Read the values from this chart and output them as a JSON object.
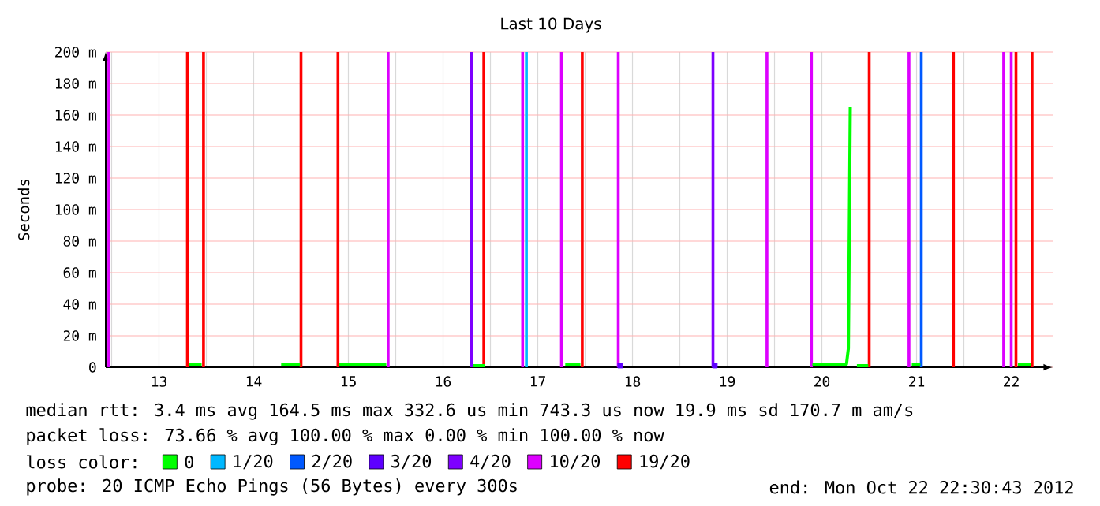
{
  "chart_data": {
    "type": "line",
    "title": "Last 10 Days",
    "ylabel": "Seconds",
    "xlim": [
      12.9375,
      22.9375
    ],
    "xticks": [
      {
        "value": 13,
        "label": null
      },
      {
        "value": 13.5,
        "label": "13"
      },
      {
        "value": 14,
        "label": null
      },
      {
        "value": 14.5,
        "label": "14"
      },
      {
        "value": 15,
        "label": null
      },
      {
        "value": 15.5,
        "label": "15"
      },
      {
        "value": 16,
        "label": null
      },
      {
        "value": 16.5,
        "label": "16"
      },
      {
        "value": 17,
        "label": null
      },
      {
        "value": 17.5,
        "label": "17"
      },
      {
        "value": 18,
        "label": null
      },
      {
        "value": 18.5,
        "label": "18"
      },
      {
        "value": 19,
        "label": null
      },
      {
        "value": 19.5,
        "label": "19"
      },
      {
        "value": 20,
        "label": null
      },
      {
        "value": 20.5,
        "label": "20"
      },
      {
        "value": 21,
        "label": null
      },
      {
        "value": 21.5,
        "label": "21"
      },
      {
        "value": 22,
        "label": null
      },
      {
        "value": 22.5,
        "label": "22"
      }
    ],
    "ylim": [
      0,
      200
    ],
    "yticks": [
      0,
      {
        "value": 20,
        "label": "20 m"
      },
      {
        "value": 40,
        "label": "40 m"
      },
      {
        "value": 60,
        "label": "60 m"
      },
      {
        "value": 80,
        "label": "80 m"
      },
      {
        "value": 100,
        "label": "100 m"
      },
      {
        "value": 120,
        "label": "120 m"
      },
      {
        "value": 140,
        "label": "140 m"
      },
      {
        "value": 160,
        "label": "160 m"
      },
      {
        "value": 180,
        "label": "180 m"
      },
      {
        "value": 200,
        "label": "200 m"
      }
    ],
    "grid": true,
    "legend": "bottom",
    "legend_title": "loss color:",
    "series": [
      {
        "name": "0",
        "color": "#00ff00",
        "x": [
          13.82,
          13.95,
          13.96,
          14.79,
          14.99,
          15.0,
          15.4,
          15.65,
          15.9,
          15.91,
          16.82,
          16.94,
          16.95,
          17.79,
          17.95,
          17.96,
          20.4,
          20.6,
          20.76,
          20.78,
          20.8,
          20.82,
          20.87,
          20.99,
          21.0,
          21.45,
          21.54,
          21.55,
          22.57,
          22.71
        ],
        "values": [
          2,
          2,
          null,
          2,
          2,
          null,
          2,
          2,
          2,
          null,
          1,
          1,
          null,
          2,
          2,
          null,
          2,
          2,
          2,
          12,
          165,
          null,
          1,
          1,
          null,
          2,
          2,
          null,
          2,
          2
        ]
      },
      {
        "name": "1/20",
        "color": "#00b8ff",
        "type": "bar",
        "x": [
          17.38
        ],
        "values": [
          200
        ]
      },
      {
        "name": "2/20",
        "color": "#0059ff",
        "type": "bar",
        "x": [
          21.55
        ],
        "values": [
          200
        ]
      },
      {
        "name": "3/20",
        "color": "#5e00ff",
        "type": "scatter",
        "x": [
          18.37,
          19.37
        ],
        "values": [
          1,
          1
        ]
      },
      {
        "name": "4/20",
        "color": "#7e00ff",
        "type": "bar",
        "x": [
          16.8,
          19.35
        ],
        "values": [
          200,
          200
        ]
      },
      {
        "name": "10/20",
        "color": "#dd00ff",
        "type": "bar",
        "x": [
          12.97,
          15.92,
          17.34,
          17.75,
          18.35,
          19.92,
          20.39,
          21.42,
          22.42,
          22.5
        ],
        "values": [
          200,
          200,
          200,
          200,
          200,
          200,
          200,
          200,
          200,
          200
        ]
      },
      {
        "name": "19/20",
        "color": "#ff0000",
        "type": "bar",
        "x": [
          13.8,
          13.97,
          15.0,
          15.39,
          16.93,
          17.97,
          21.0,
          21.89,
          22.55,
          22.72
        ],
        "values": [
          200,
          200,
          200,
          200,
          200,
          200,
          200,
          200,
          200,
          200
        ]
      }
    ],
    "annotations": [
      "median rtt: 3.4 ms avg 164.5 ms max 332.6 us min 743.3 us now 19.9 ms sd 170.7 m am/s",
      "packet loss: 73.66 % avg 100.00 % max 0.00 % min 100.00 % now",
      "probe: 20 ICMP Echo Pings (56 Bytes) every 300s",
      "end: Mon Oct 22 22:30:43 2012"
    ]
  }
}
